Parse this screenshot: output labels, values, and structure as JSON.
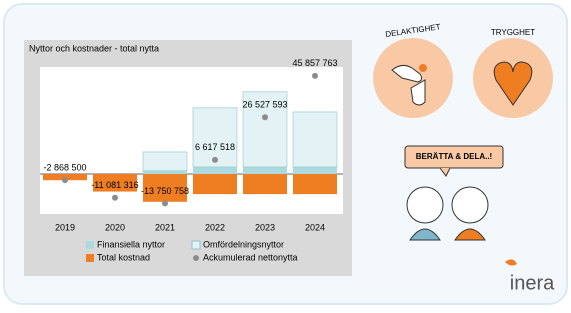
{
  "chart_data": {
    "type": "bar",
    "title": "Nyttor och kostnader - total nytta",
    "categories": [
      "2019",
      "2020",
      "2021",
      "2022",
      "2023",
      "2024"
    ],
    "series": [
      {
        "name": "Finansiella nyttor",
        "color": "#acd9de",
        "values": [
          0,
          0,
          1500000,
          3300000,
          3300000,
          3300000
        ]
      },
      {
        "name": "Omfördelningsnyttor",
        "color": "#e3f2f4",
        "values": [
          0,
          0,
          8800000,
          27600000,
          35100000,
          25700000
        ]
      },
      {
        "name": "Total kostnad",
        "color": "#ef7d22",
        "values": [
          -2900000,
          -8200000,
          -13000000,
          -9400000,
          -9400000,
          -9400000
        ]
      },
      {
        "name": "Ackumulerad nettonytta",
        "color": "#8c8c8c",
        "type": "scatter",
        "values": [
          -2868500,
          -11081316,
          -13750758,
          6617518,
          26527593,
          45857763
        ],
        "value_labels": [
          "-2 868 500",
          "-11 081 316",
          "-13 750 758",
          "6 617 518",
          "26 527 593",
          "45 857 763"
        ]
      }
    ]
  },
  "illustrations": {
    "badges": [
      "DELAKTIGHET",
      "TRYGGHET"
    ],
    "speech": "BERÄTTA & DELA..!",
    "logo": "inera"
  }
}
